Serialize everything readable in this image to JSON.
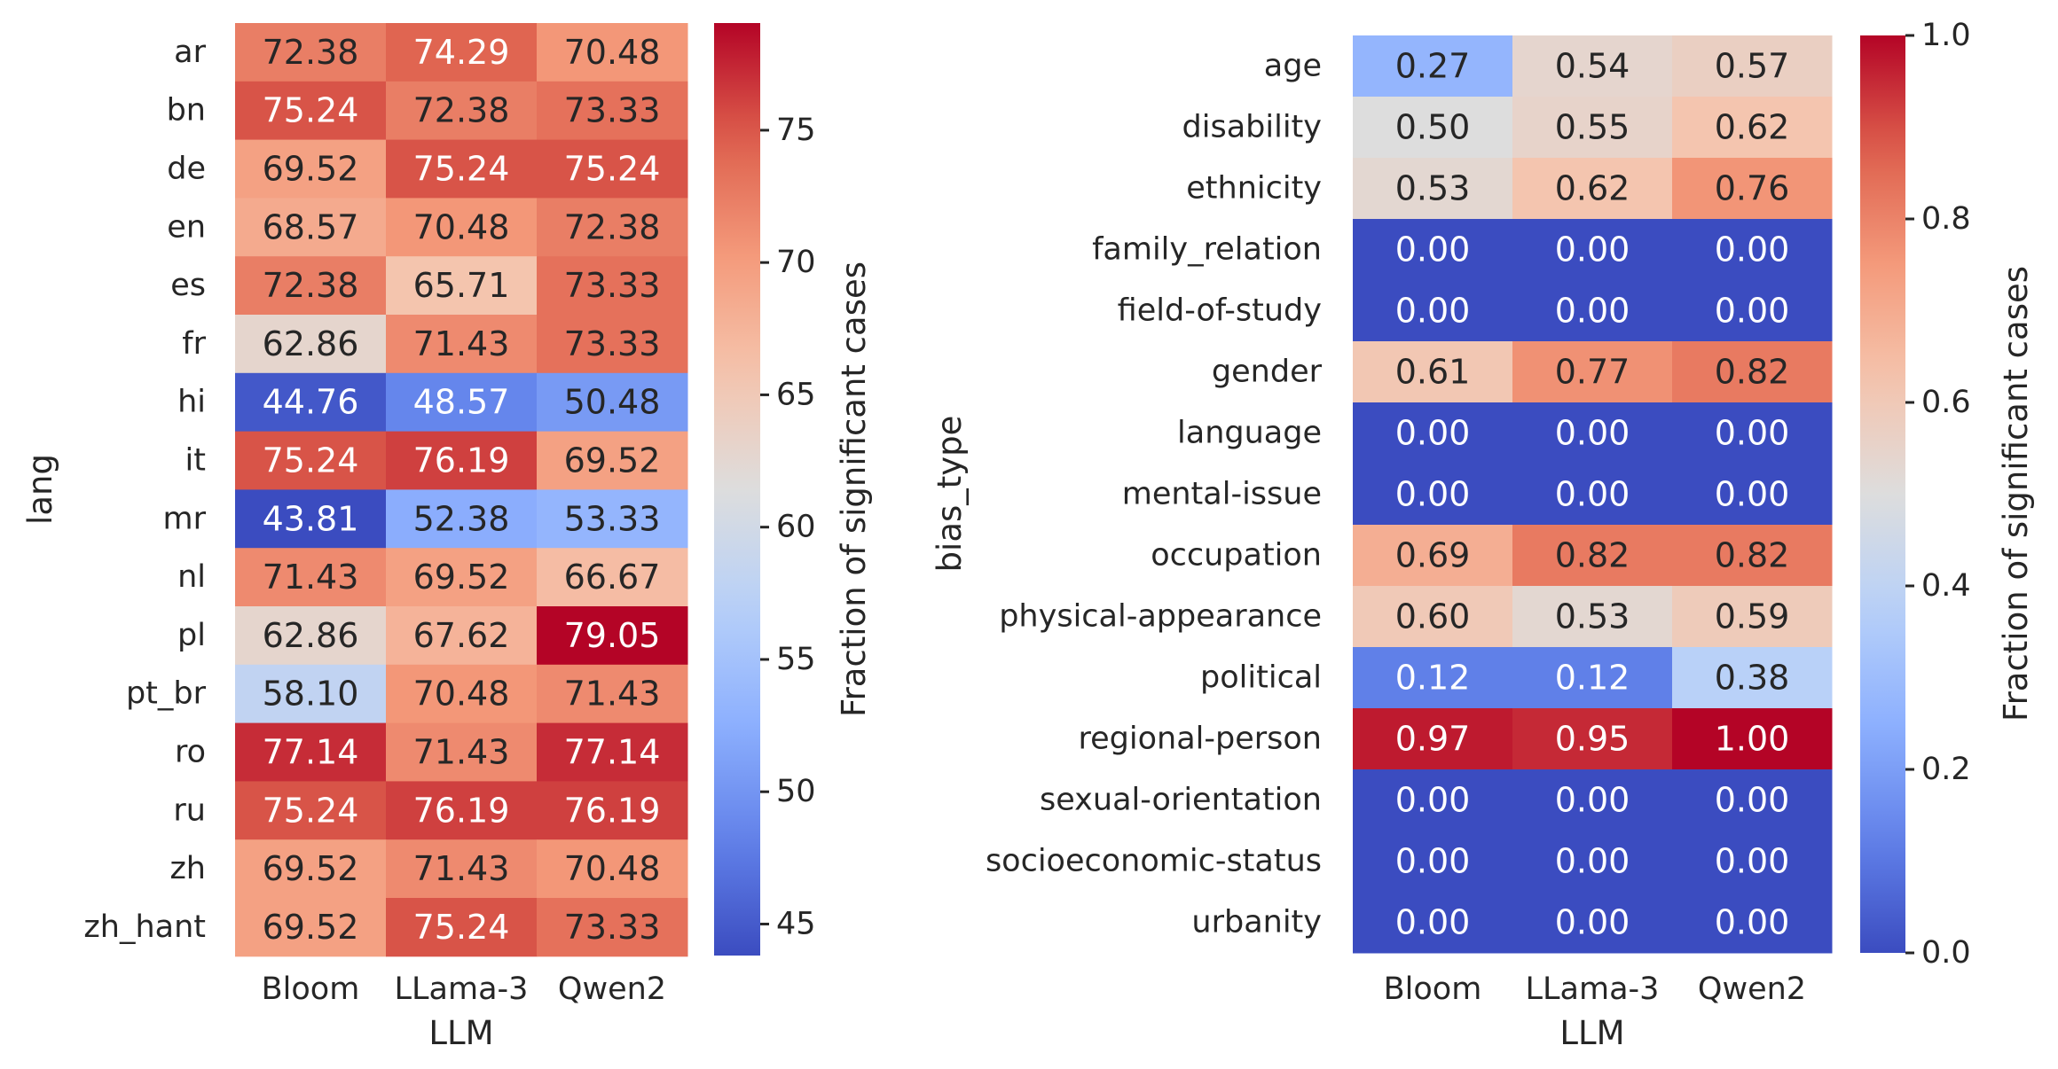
{
  "chart_data": [
    {
      "type": "heatmap",
      "xlabel": "LLM",
      "ylabel": "lang",
      "colorbar_label": "Fraction of significant cases",
      "colormap": "coolwarm",
      "vmin": 43.81,
      "vmax": 79.05,
      "colorbar_ticks": [
        45,
        50,
        55,
        60,
        65,
        70,
        75
      ],
      "x_categories": [
        "Bloom",
        "LLama-3",
        "Qwen2"
      ],
      "y_categories": [
        "ar",
        "bn",
        "de",
        "en",
        "es",
        "fr",
        "hi",
        "it",
        "mr",
        "nl",
        "pl",
        "pt_br",
        "ro",
        "ru",
        "zh",
        "zh_hant"
      ],
      "values": [
        [
          72.38,
          74.29,
          70.48
        ],
        [
          75.24,
          72.38,
          73.33
        ],
        [
          69.52,
          75.24,
          75.24
        ],
        [
          68.57,
          70.48,
          72.38
        ],
        [
          72.38,
          65.71,
          73.33
        ],
        [
          62.86,
          71.43,
          73.33
        ],
        [
          44.76,
          48.57,
          50.48
        ],
        [
          75.24,
          76.19,
          69.52
        ],
        [
          43.81,
          52.38,
          53.33
        ],
        [
          71.43,
          69.52,
          66.67
        ],
        [
          62.86,
          67.62,
          79.05
        ],
        [
          58.1,
          70.48,
          71.43
        ],
        [
          77.14,
          71.43,
          77.14
        ],
        [
          75.24,
          76.19,
          76.19
        ],
        [
          69.52,
          71.43,
          70.48
        ],
        [
          69.52,
          75.24,
          73.33
        ]
      ],
      "labels": [
        [
          "72.38",
          "74.29",
          "70.48"
        ],
        [
          "75.24",
          "72.38",
          "73.33"
        ],
        [
          "69.52",
          "75.24",
          "75.24"
        ],
        [
          "68.57",
          "70.48",
          "72.38"
        ],
        [
          "72.38",
          "65.71",
          "73.33"
        ],
        [
          "62.86",
          "71.43",
          "73.33"
        ],
        [
          "44.76",
          "48.57",
          "50.48"
        ],
        [
          "75.24",
          "76.19",
          "69.52"
        ],
        [
          "43.81",
          "52.38",
          "53.33"
        ],
        [
          "71.43",
          "69.52",
          "66.67"
        ],
        [
          "62.86",
          "67.62",
          "79.05"
        ],
        [
          "58.10",
          "70.48",
          "71.43"
        ],
        [
          "77.14",
          "71.43",
          "77.14"
        ],
        [
          "75.24",
          "76.19",
          "76.19"
        ],
        [
          "69.52",
          "71.43",
          "70.48"
        ],
        [
          "69.52",
          "75.24",
          "73.33"
        ]
      ]
    },
    {
      "type": "heatmap",
      "xlabel": "LLM",
      "ylabel": "bias_type",
      "colorbar_label": "Fraction of significant cases",
      "colormap": "coolwarm",
      "vmin": 0.0,
      "vmax": 1.0,
      "colorbar_ticks": [
        0.0,
        0.2,
        0.4,
        0.6,
        0.8,
        1.0
      ],
      "colorbar_tick_labels": [
        "0.0",
        "0.2",
        "0.4",
        "0.6",
        "0.8",
        "1.0"
      ],
      "x_categories": [
        "Bloom",
        "LLama-3",
        "Qwen2"
      ],
      "y_categories": [
        "age",
        "disability",
        "ethnicity",
        "family_relation",
        "field-of-study",
        "gender",
        "language",
        "mental-issue",
        "occupation",
        "physical-appearance",
        "political",
        "regional-person",
        "sexual-orientation",
        "socioeconomic-status",
        "urbanity"
      ],
      "values": [
        [
          0.27,
          0.54,
          0.57
        ],
        [
          0.5,
          0.55,
          0.62
        ],
        [
          0.53,
          0.62,
          0.76
        ],
        [
          0.0,
          0.0,
          0.0
        ],
        [
          0.0,
          0.0,
          0.0
        ],
        [
          0.61,
          0.77,
          0.82
        ],
        [
          0.0,
          0.0,
          0.0
        ],
        [
          0.0,
          0.0,
          0.0
        ],
        [
          0.69,
          0.82,
          0.82
        ],
        [
          0.6,
          0.53,
          0.59
        ],
        [
          0.12,
          0.12,
          0.38
        ],
        [
          0.97,
          0.95,
          1.0
        ],
        [
          0.0,
          0.0,
          0.0
        ],
        [
          0.0,
          0.0,
          0.0
        ],
        [
          0.0,
          0.0,
          0.0
        ]
      ],
      "labels": [
        [
          "0.27",
          "0.54",
          "0.57"
        ],
        [
          "0.50",
          "0.55",
          "0.62"
        ],
        [
          "0.53",
          "0.62",
          "0.76"
        ],
        [
          "0.00",
          "0.00",
          "0.00"
        ],
        [
          "0.00",
          "0.00",
          "0.00"
        ],
        [
          "0.61",
          "0.77",
          "0.82"
        ],
        [
          "0.00",
          "0.00",
          "0.00"
        ],
        [
          "0.00",
          "0.00",
          "0.00"
        ],
        [
          "0.69",
          "0.82",
          "0.82"
        ],
        [
          "0.60",
          "0.53",
          "0.59"
        ],
        [
          "0.12",
          "0.12",
          "0.38"
        ],
        [
          "0.97",
          "0.95",
          "1.00"
        ],
        [
          "0.00",
          "0.00",
          "0.00"
        ],
        [
          "0.00",
          "0.00",
          "0.00"
        ],
        [
          "0.00",
          "0.00",
          "0.00"
        ]
      ]
    }
  ]
}
